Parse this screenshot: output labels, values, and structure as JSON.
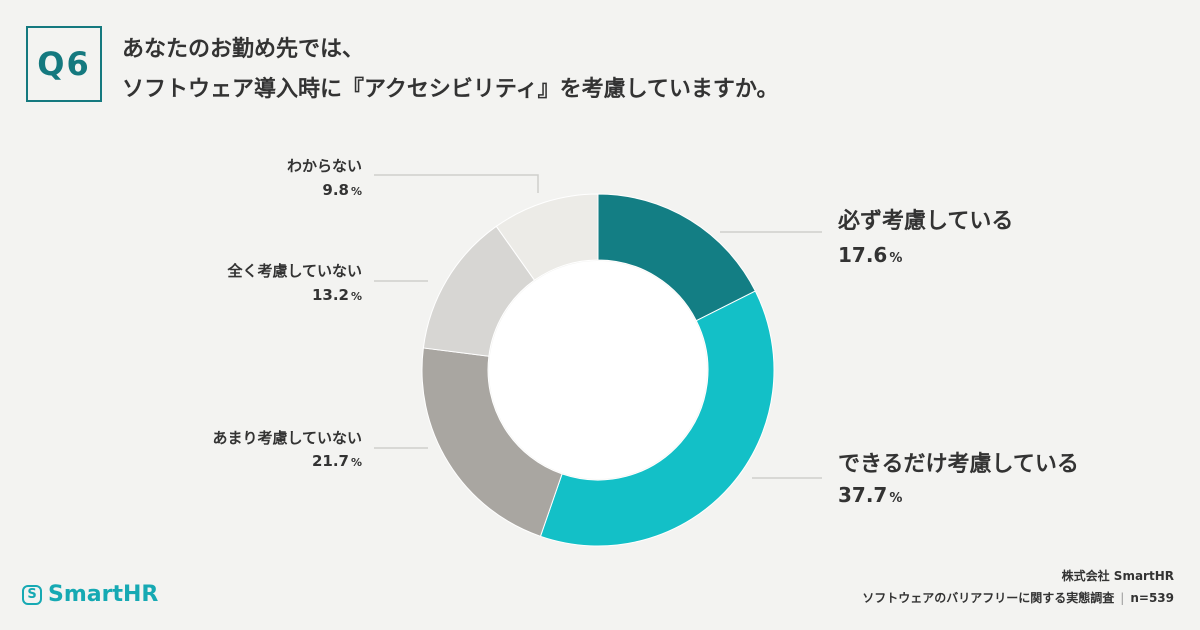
{
  "question": {
    "number": "Q6",
    "line1": "あなたのお勤め先では、",
    "line2": "ソフトウェア導入時に『アクセシビリティ』を考慮していますか。"
  },
  "chart_data": {
    "type": "pie",
    "variant": "donut",
    "title": "ソフトウェア導入時に『アクセシビリティ』を考慮していますか。",
    "unit": "%",
    "categories": [
      "必ず考慮している",
      "できるだけ考慮している",
      "あまり考慮していない",
      "全く考慮していない",
      "わからない"
    ],
    "values": [
      17.6,
      37.7,
      21.7,
      13.2,
      9.8
    ],
    "value_labels": [
      "17.6",
      "37.7",
      "21.7",
      "13.2",
      "9.8"
    ],
    "colors": [
      "#137e84",
      "#13c0c7",
      "#a9a6a1",
      "#d7d6d3",
      "#ecebe7"
    ]
  },
  "brand": {
    "logo_mark": "S",
    "logo_text": "SmartHR",
    "company": "株式会社 SmartHR",
    "survey": "ソフトウェアのバリアフリーに関する実態調査",
    "sample": "n=539"
  },
  "theme": {
    "accent": "#14797f",
    "background": "#f3f3f1"
  }
}
